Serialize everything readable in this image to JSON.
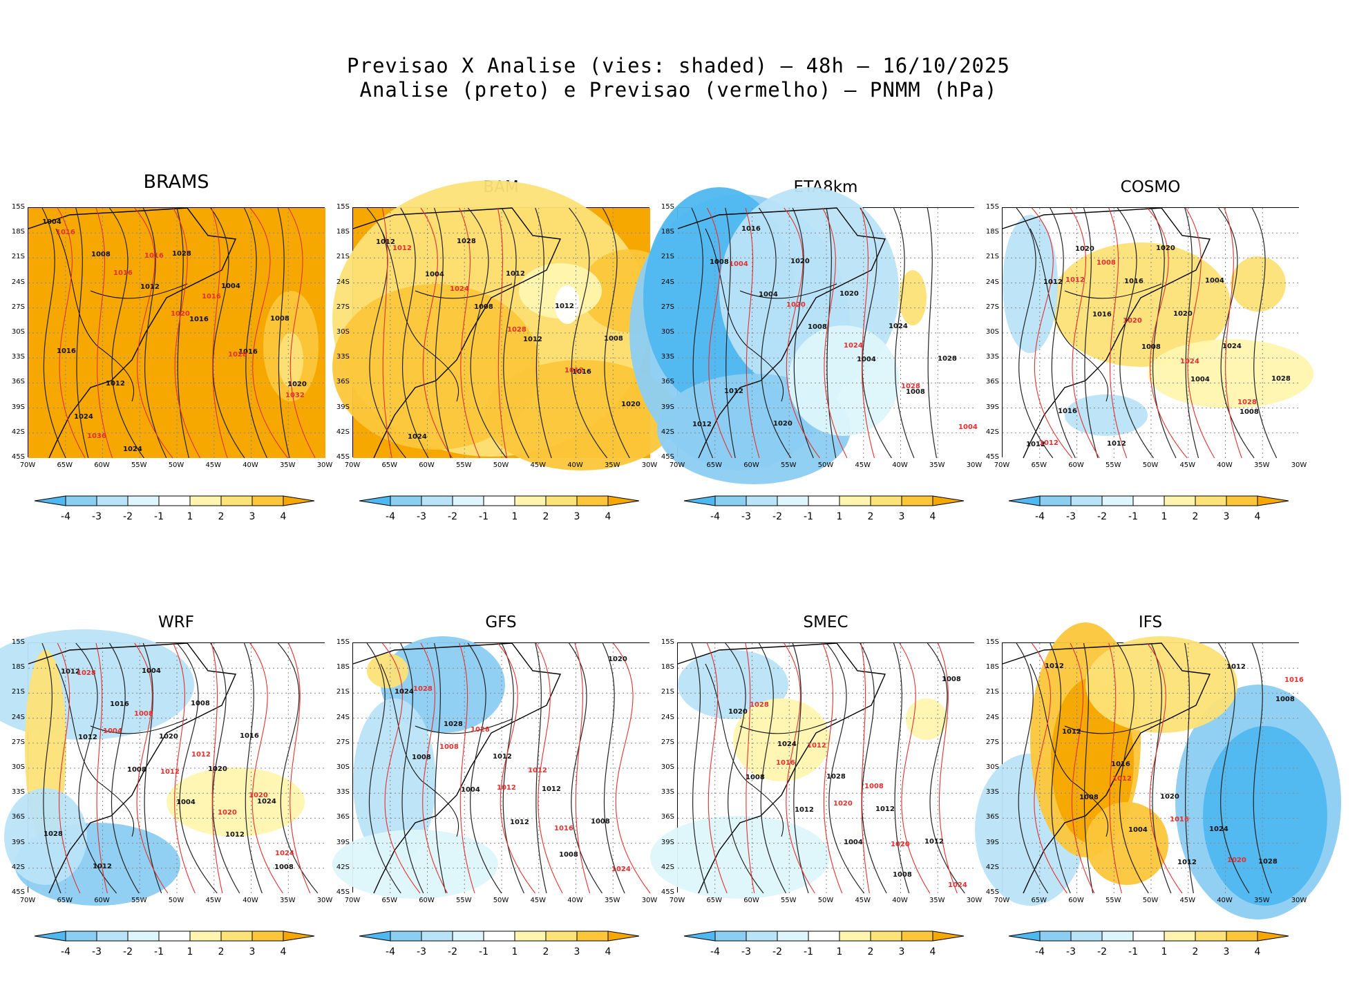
{
  "title": {
    "line1": "Previsao X Analise (vies: shaded) — 48h — 16/10/2025",
    "line2": "Analise (preto) e Previsao (vermelho) — PNMM (hPa)"
  },
  "axes": {
    "lat_labels": [
      "15S",
      "18S",
      "21S",
      "24S",
      "27S",
      "30S",
      "33S",
      "36S",
      "39S",
      "42S",
      "45S"
    ],
    "lon_labels": [
      "70W",
      "65W",
      "60W",
      "55W",
      "50W",
      "45W",
      "40W",
      "35W",
      "30W"
    ]
  },
  "colorbar": {
    "labels": [
      "-4",
      "-3",
      "-2",
      "-1",
      "1",
      "2",
      "3",
      "4"
    ],
    "colors": [
      "#4fb8f0",
      "#8ccef2",
      "#b9e3f7",
      "#ddf5fb",
      "#ffffff",
      "#fff5b0",
      "#fde277",
      "#fcc63a",
      "#f6a800"
    ]
  },
  "colors": {
    "analysis_contour": "#222222",
    "forecast_contour": "#e23030",
    "grid": "#888888"
  },
  "panels": [
    {
      "model": "BRAMS",
      "bias": "warm",
      "isobars_black": [
        "1004",
        "1008",
        "1012",
        "1016",
        "1016",
        "1020",
        "1024",
        "1024",
        "1028",
        "1004",
        "1008",
        "1016",
        "1012"
      ],
      "isobars_red": [
        "1016",
        "1016",
        "1020",
        "1028",
        "1032",
        "1036",
        "1016",
        "1016"
      ]
    },
    {
      "model": "BAM",
      "bias": "warm",
      "isobars_black": [
        "1012",
        "1004",
        "1008",
        "1012",
        "1016",
        "1020",
        "1024",
        "1028",
        "1012",
        "1012",
        "1008"
      ],
      "isobars_red": [
        "1012",
        "1024",
        "1028",
        "1012"
      ]
    },
    {
      "model": "ETA8km",
      "bias": "cold",
      "isobars_black": [
        "1008",
        "1004",
        "1008",
        "1004",
        "1008",
        "1012",
        "1016",
        "1020",
        "1020",
        "1024",
        "1028",
        "1012",
        "1020"
      ],
      "isobars_red": [
        "1004",
        "1020",
        "1024",
        "1028",
        "1004"
      ]
    },
    {
      "model": "COSMO",
      "bias": "mixed",
      "isobars_black": [
        "1012",
        "1016",
        "1008",
        "1004",
        "1008",
        "1012",
        "1020",
        "1016",
        "1020",
        "1024",
        "1028",
        "1016",
        "1012",
        "1020",
        "1004"
      ],
      "isobars_red": [
        "1012",
        "1020",
        "1024",
        "1028",
        "1012",
        "1008"
      ]
    },
    {
      "model": "WRF",
      "bias": "mixed",
      "isobars_black": [
        "1012",
        "1008",
        "1004",
        "1012",
        "1008",
        "1012",
        "1016",
        "1020",
        "1020",
        "1024",
        "1028",
        "1012",
        "1004",
        "1008",
        "1016"
      ],
      "isobars_red": [
        "1004",
        "1012",
        "1020",
        "1024",
        "1028",
        "1008",
        "1012",
        "1020"
      ]
    },
    {
      "model": "GFS",
      "bias": "mixed",
      "isobars_black": [
        "1008",
        "1004",
        "1012",
        "1008",
        "1020",
        "1024",
        "1028",
        "1012",
        "1012",
        "1008"
      ],
      "isobars_red": [
        "1008",
        "1012",
        "1016",
        "1024",
        "1028",
        "1028",
        "1012"
      ]
    },
    {
      "model": "SMEC",
      "bias": "mixed",
      "isobars_black": [
        "1008",
        "1012",
        "1004",
        "1008",
        "1008",
        "1020",
        "1024",
        "1028",
        "1012",
        "1012"
      ],
      "isobars_red": [
        "1016",
        "1020",
        "1020",
        "1024",
        "1028",
        "1012",
        "1008"
      ]
    },
    {
      "model": "IFS",
      "bias": "ifs",
      "isobars_black": [
        "1008",
        "1004",
        "1012",
        "1012",
        "1008",
        "1012",
        "1016",
        "1020",
        "1024",
        "1028",
        "1012"
      ],
      "isobars_red": [
        "1012",
        "1016",
        "1020",
        "1016"
      ]
    }
  ]
}
